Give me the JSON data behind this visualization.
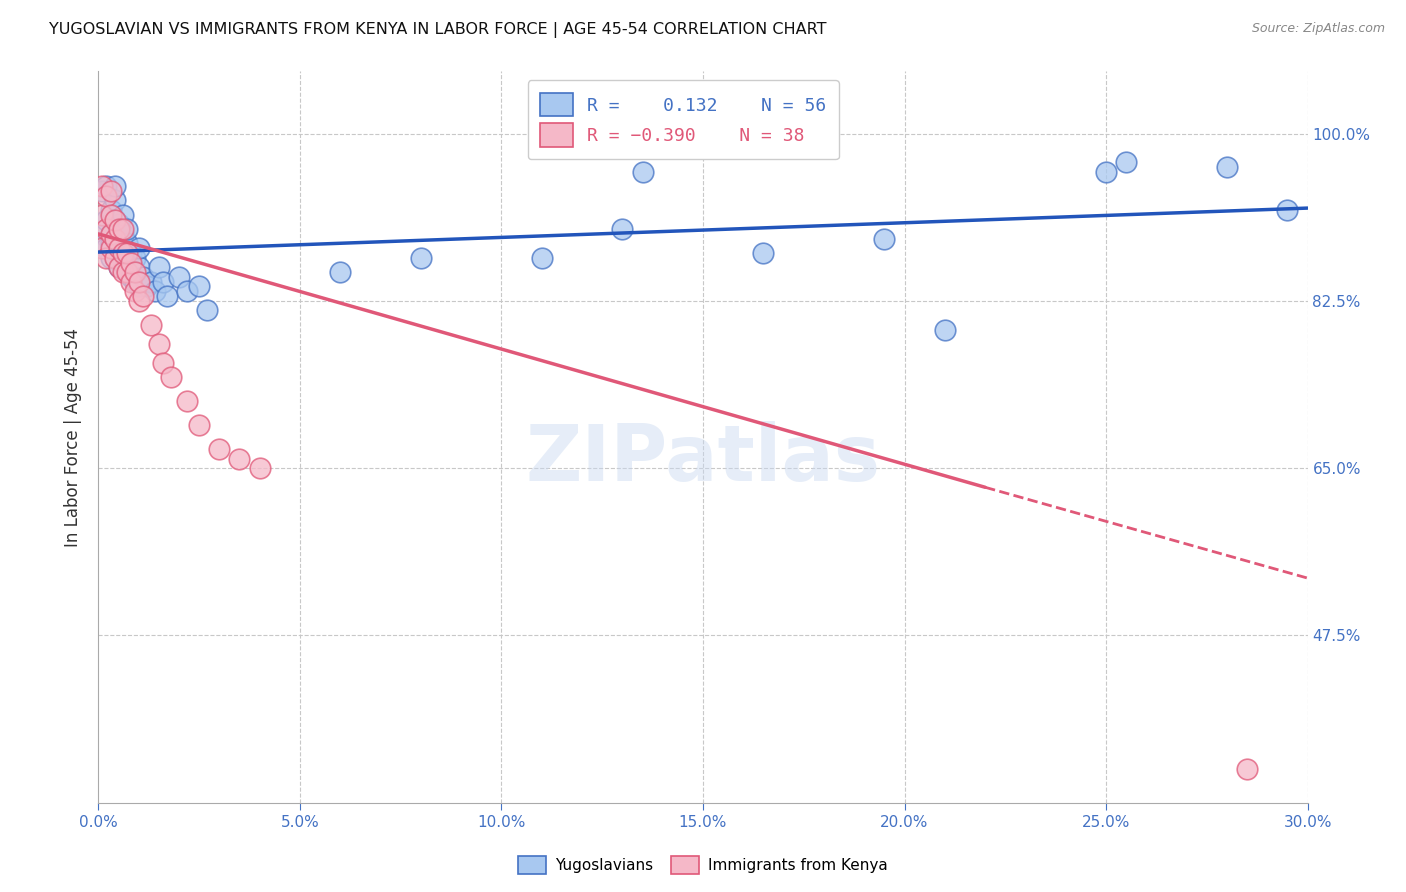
{
  "title": "YUGOSLAVIAN VS IMMIGRANTS FROM KENYA IN LABOR FORCE | AGE 45-54 CORRELATION CHART",
  "source": "Source: ZipAtlas.com",
  "ylabel": "In Labor Force | Age 45-54",
  "xlim": [
    0.0,
    0.3
  ],
  "ylim": [
    0.3,
    1.065
  ],
  "yticks": [
    0.475,
    0.65,
    0.825,
    1.0
  ],
  "ytick_labels": [
    "47.5%",
    "65.0%",
    "82.5%",
    "100.0%"
  ],
  "xticks": [
    0.0,
    0.05,
    0.1,
    0.15,
    0.2,
    0.25,
    0.3
  ],
  "xtick_labels": [
    "0.0%",
    "5.0%",
    "10.0%",
    "15.0%",
    "20.0%",
    "25.0%",
    "30.0%"
  ],
  "blue_R": 0.132,
  "blue_N": 56,
  "pink_R": -0.39,
  "pink_N": 38,
  "blue_color": "#a8c8f0",
  "pink_color": "#f5b8c8",
  "blue_edge_color": "#4472c4",
  "pink_edge_color": "#e05878",
  "blue_line_color": "#2255bb",
  "pink_line_color": "#e05878",
  "watermark": "ZIPatlas",
  "blue_line_x0": 0.0,
  "blue_line_y0": 0.876,
  "blue_line_x1": 0.3,
  "blue_line_y1": 0.922,
  "pink_line_x0": 0.0,
  "pink_line_y0": 0.895,
  "pink_line_solid_x1": 0.22,
  "pink_line_solid_y1": 0.63,
  "pink_line_dash_x1": 0.3,
  "pink_line_dash_y1": 0.535,
  "blue_scatter_x": [
    0.001,
    0.001,
    0.002,
    0.002,
    0.002,
    0.003,
    0.003,
    0.003,
    0.003,
    0.004,
    0.004,
    0.004,
    0.004,
    0.004,
    0.005,
    0.005,
    0.005,
    0.005,
    0.006,
    0.006,
    0.006,
    0.006,
    0.007,
    0.007,
    0.007,
    0.007,
    0.008,
    0.008,
    0.009,
    0.009,
    0.01,
    0.01,
    0.01,
    0.011,
    0.012,
    0.013,
    0.014,
    0.015,
    0.016,
    0.017,
    0.02,
    0.022,
    0.025,
    0.027,
    0.06,
    0.08,
    0.11,
    0.13,
    0.135,
    0.165,
    0.195,
    0.21,
    0.25,
    0.255,
    0.28,
    0.295
  ],
  "blue_scatter_y": [
    0.895,
    0.94,
    0.88,
    0.91,
    0.945,
    0.87,
    0.885,
    0.92,
    0.895,
    0.87,
    0.89,
    0.91,
    0.93,
    0.945,
    0.86,
    0.875,
    0.89,
    0.905,
    0.865,
    0.88,
    0.895,
    0.915,
    0.855,
    0.87,
    0.885,
    0.9,
    0.85,
    0.875,
    0.845,
    0.87,
    0.84,
    0.86,
    0.88,
    0.85,
    0.84,
    0.845,
    0.835,
    0.86,
    0.845,
    0.83,
    0.85,
    0.835,
    0.84,
    0.815,
    0.855,
    0.87,
    0.87,
    0.9,
    0.96,
    0.875,
    0.89,
    0.795,
    0.96,
    0.97,
    0.965,
    0.92
  ],
  "pink_scatter_x": [
    0.001,
    0.001,
    0.001,
    0.002,
    0.002,
    0.002,
    0.003,
    0.003,
    0.003,
    0.003,
    0.004,
    0.004,
    0.004,
    0.005,
    0.005,
    0.005,
    0.006,
    0.006,
    0.006,
    0.007,
    0.007,
    0.008,
    0.008,
    0.009,
    0.009,
    0.01,
    0.01,
    0.011,
    0.013,
    0.015,
    0.016,
    0.018,
    0.022,
    0.025,
    0.03,
    0.035,
    0.04,
    0.285
  ],
  "pink_scatter_y": [
    0.88,
    0.915,
    0.945,
    0.87,
    0.9,
    0.935,
    0.88,
    0.895,
    0.915,
    0.94,
    0.87,
    0.89,
    0.91,
    0.86,
    0.88,
    0.9,
    0.855,
    0.875,
    0.9,
    0.855,
    0.875,
    0.845,
    0.865,
    0.835,
    0.855,
    0.825,
    0.845,
    0.83,
    0.8,
    0.78,
    0.76,
    0.745,
    0.72,
    0.695,
    0.67,
    0.66,
    0.65,
    0.335
  ]
}
